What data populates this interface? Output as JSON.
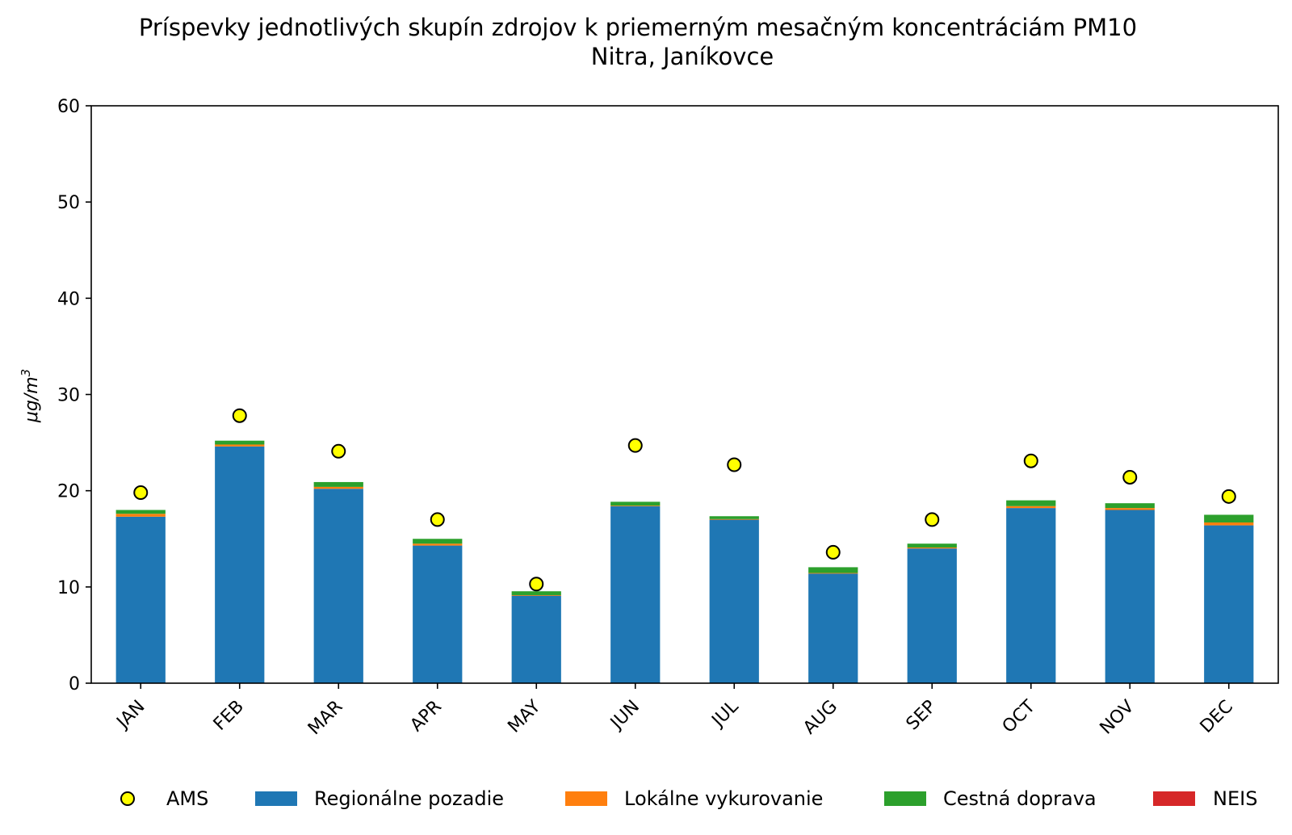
{
  "chart_data": {
    "type": "bar",
    "title": "Príspevky jednotlivých skupín zdrojov k priemerným mesačným koncentráciám PM10",
    "subtitle": "Nitra, Janíkovce",
    "ylabel": "μg/m",
    "ylabel_sup": "3",
    "xlabel": "",
    "ylim": [
      0,
      60
    ],
    "yticks": [
      0,
      10,
      20,
      30,
      40,
      50,
      60
    ],
    "stacked": true,
    "categories": [
      "JAN",
      "FEB",
      "MAR",
      "APR",
      "MAY",
      "JUN",
      "JUL",
      "AUG",
      "SEP",
      "OCT",
      "NOV",
      "DEC"
    ],
    "series": [
      {
        "name": "Regionálne pozadie",
        "color": "#1f77b4",
        "values": [
          17.3,
          24.6,
          20.2,
          14.3,
          9.1,
          18.4,
          17.0,
          11.4,
          14.0,
          18.2,
          18.0,
          16.4
        ]
      },
      {
        "name": "Lokálne vykurovanie",
        "color": "#ff7f0e",
        "values": [
          0.3,
          0.2,
          0.2,
          0.2,
          0.05,
          0.05,
          0.05,
          0.05,
          0.1,
          0.2,
          0.2,
          0.3
        ]
      },
      {
        "name": "Cestná doprava",
        "color": "#2ca02c",
        "values": [
          0.4,
          0.4,
          0.5,
          0.5,
          0.4,
          0.4,
          0.3,
          0.6,
          0.4,
          0.6,
          0.5,
          0.8
        ]
      },
      {
        "name": "NEIS",
        "color": "#d62728",
        "values": [
          0.0,
          0.0,
          0.0,
          0.0,
          0.0,
          0.0,
          0.0,
          0.0,
          0.0,
          0.0,
          0.0,
          0.0
        ]
      }
    ],
    "markers": {
      "name": "AMS",
      "color": "#ffff00",
      "edge": "#000000",
      "values": [
        19.8,
        27.8,
        24.1,
        17.0,
        10.3,
        24.7,
        22.7,
        13.6,
        17.0,
        23.1,
        21.4,
        19.4
      ]
    },
    "legend": {
      "position": "bottom",
      "order": [
        "AMS",
        "Regionálne pozadie",
        "Lokálne vykurovanie",
        "Cestná doprava",
        "NEIS"
      ]
    }
  }
}
